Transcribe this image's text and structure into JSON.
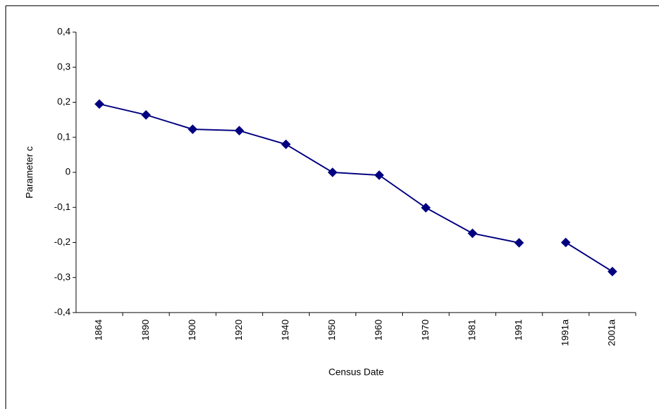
{
  "chart_data": {
    "type": "line",
    "x_label": "Census Date",
    "y_label": "Parameter c",
    "categories": [
      "1864",
      "1890",
      "1900",
      "1920",
      "1940",
      "1950",
      "1960",
      "1970",
      "1981",
      "1991",
      "1991a",
      "2001a"
    ],
    "series": [
      {
        "color": "#000080",
        "values": [
          0.195,
          0.164,
          0.123,
          0.119,
          0.08,
          0,
          -0.008,
          -0.101,
          -0.174,
          -0.201,
          null,
          null
        ]
      },
      {
        "color": "#000080",
        "values": [
          null,
          null,
          null,
          null,
          null,
          null,
          null,
          null,
          null,
          null,
          -0.2,
          -0.283
        ]
      }
    ],
    "ylim": [
      -0.4,
      0.4
    ],
    "yticks": [
      {
        "value": -0.4,
        "label": "-0,4"
      },
      {
        "value": -0.3,
        "label": "-0,3"
      },
      {
        "value": -0.2,
        "label": "-0,2"
      },
      {
        "value": -0.1,
        "label": "-0,1"
      },
      0,
      {
        "value": 0.1,
        "label": "0,1"
      },
      {
        "value": 0.2,
        "label": "0,2"
      },
      {
        "value": 0.3,
        "label": "0,3"
      },
      {
        "value": 0.4,
        "label": "0,4"
      }
    ],
    "grid": false
  }
}
